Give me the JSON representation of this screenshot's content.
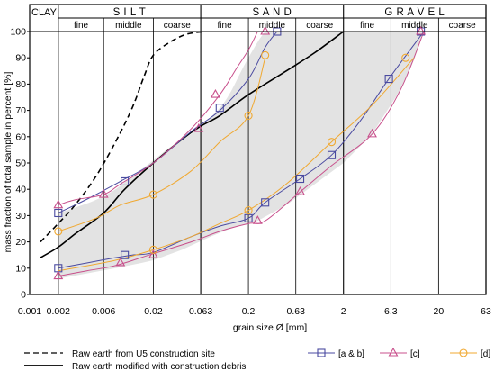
{
  "chart_data": {
    "type": "line",
    "title": "",
    "xlabel": "grain size  Ø [mm]",
    "ylabel": "mass fraction of total sample in percent [%]",
    "xscale": "log",
    "xlim": [
      0.001,
      63
    ],
    "ylim": [
      0,
      100
    ],
    "x_ticks": [
      0.001,
      0.002,
      0.006,
      0.02,
      0.063,
      0.2,
      0.63,
      2,
      6.3,
      20,
      63
    ],
    "x_tick_labels": [
      "0.001",
      "0.002",
      "0.006",
      "0.02",
      "0.063",
      "0.2",
      "0.63",
      "2",
      "6.3",
      "20",
      "63"
    ],
    "y_ticks": [
      0,
      10,
      20,
      30,
      40,
      50,
      60,
      70,
      80,
      90,
      100
    ],
    "grid": "vertical lines at fraction boundaries",
    "legend_position": "bottom",
    "soil_classes": [
      {
        "label": "CLAY"
      },
      {
        "label": "S I L T",
        "subs": [
          "fine",
          "middle",
          "coarse"
        ]
      },
      {
        "label": "S A N D",
        "subs": [
          "fine",
          "middle",
          "coarse"
        ]
      },
      {
        "label": "G R A V E L",
        "subs": [
          "fine",
          "middle",
          "coarse"
        ]
      }
    ],
    "envelope": {
      "upper": [
        [
          0.002,
          31
        ],
        [
          0.003,
          33
        ],
        [
          0.005,
          36
        ],
        [
          0.008,
          40
        ],
        [
          0.012,
          45
        ],
        [
          0.02,
          51
        ],
        [
          0.03,
          56
        ],
        [
          0.05,
          61
        ],
        [
          0.063,
          64
        ],
        [
          0.1,
          71
        ],
        [
          0.13,
          77
        ],
        [
          0.18,
          87
        ],
        [
          0.25,
          96
        ],
        [
          0.3,
          100
        ]
      ],
      "lower": [
        [
          0.002,
          6
        ],
        [
          0.004,
          8
        ],
        [
          0.008,
          10
        ],
        [
          0.015,
          12
        ],
        [
          0.02,
          13
        ],
        [
          0.04,
          17
        ],
        [
          0.08,
          22
        ],
        [
          0.15,
          26
        ],
        [
          0.25,
          28
        ],
        [
          0.5,
          34
        ],
        [
          1,
          42
        ],
        [
          2,
          50
        ],
        [
          4,
          61
        ],
        [
          8,
          78
        ],
        [
          11,
          89
        ],
        [
          14,
          100
        ]
      ]
    },
    "series": [
      {
        "name": "Raw earth from U5 construction site",
        "style": "dashed",
        "color": "#000000",
        "points": [
          [
            0.0013,
            20
          ],
          [
            0.002,
            27
          ],
          [
            0.003,
            34
          ],
          [
            0.005,
            45
          ],
          [
            0.008,
            58
          ],
          [
            0.012,
            71
          ],
          [
            0.016,
            83
          ],
          [
            0.02,
            91
          ],
          [
            0.03,
            96
          ],
          [
            0.045,
            99
          ],
          [
            0.07,
            100
          ]
        ]
      },
      {
        "name": "Raw earth modified with construction debris",
        "style": "solid",
        "color": "#000000",
        "points": [
          [
            0.0013,
            14
          ],
          [
            0.002,
            18
          ],
          [
            0.003,
            23
          ],
          [
            0.006,
            31
          ],
          [
            0.01,
            40
          ],
          [
            0.02,
            50
          ],
          [
            0.04,
            59
          ],
          [
            0.063,
            64
          ],
          [
            0.1,
            68
          ],
          [
            0.2,
            76
          ],
          [
            0.5,
            85
          ],
          [
            1,
            92
          ],
          [
            2,
            100
          ]
        ]
      },
      {
        "name": "[a & b]",
        "style": "solid",
        "color": "#4a4aa0",
        "marker": "square",
        "curves": [
          [
            [
              0.002,
              31
            ],
            [
              0.003,
              34
            ],
            [
              0.005,
              38
            ],
            [
              0.009,
              43
            ],
            [
              0.02,
              50
            ],
            [
              0.05,
              62
            ],
            [
              0.1,
              70
            ],
            [
              0.2,
              82
            ],
            [
              0.3,
              94
            ],
            [
              0.4,
              100
            ]
          ],
          [
            [
              0.002,
              10
            ],
            [
              0.004,
              12
            ],
            [
              0.008,
              14
            ],
            [
              0.012,
              15
            ],
            [
              0.02,
              16
            ],
            [
              0.05,
              22
            ],
            [
              0.1,
              26
            ],
            [
              0.2,
              29
            ],
            [
              0.3,
              35
            ],
            [
              0.7,
              44
            ],
            [
              1.5,
              53
            ],
            [
              3,
              66
            ],
            [
              6,
              82
            ],
            [
              14,
              100
            ]
          ]
        ]
      },
      {
        "name": "[c]",
        "style": "solid",
        "color": "#c8508c",
        "marker": "triangle",
        "curves": [
          [
            [
              0.002,
              34
            ],
            [
              0.003,
              36
            ],
            [
              0.006,
              38
            ],
            [
              0.009,
              42
            ],
            [
              0.02,
              50
            ],
            [
              0.05,
              63
            ],
            [
              0.1,
              76
            ],
            [
              0.15,
              86
            ],
            [
              0.2,
              93
            ],
            [
              0.25,
              100
            ]
          ],
          [
            [
              0.002,
              7
            ],
            [
              0.004,
              9
            ],
            [
              0.008,
              11
            ],
            [
              0.018,
              15
            ],
            [
              0.05,
              20
            ],
            [
              0.1,
              24
            ],
            [
              0.2,
              27
            ],
            [
              0.3,
              28
            ],
            [
              0.7,
              39
            ],
            [
              1.5,
              49
            ],
            [
              4,
              61
            ],
            [
              8,
              78
            ],
            [
              14,
              100
            ]
          ]
        ]
      },
      {
        "name": "[d]",
        "style": "solid",
        "color": "#f0a830",
        "marker": "circle",
        "curves": [
          [
            [
              0.002,
              24
            ],
            [
              0.005,
              29
            ],
            [
              0.009,
              34
            ],
            [
              0.02,
              38
            ],
            [
              0.05,
              47
            ],
            [
              0.1,
              58
            ],
            [
              0.2,
              68
            ],
            [
              0.3,
              90
            ]
          ],
          [
            [
              0.002,
              9
            ],
            [
              0.008,
              13
            ],
            [
              0.02,
              17
            ],
            [
              0.05,
              22
            ],
            [
              0.1,
              27
            ],
            [
              0.2,
              32
            ],
            [
              0.5,
              42
            ],
            [
              1.5,
              58
            ],
            [
              4,
              72
            ],
            [
              11,
              90
            ]
          ]
        ]
      }
    ],
    "markers": {
      "[a & b]": [
        [
          0.002,
          31
        ],
        [
          0.002,
          10
        ],
        [
          0.01,
          43
        ],
        [
          0.01,
          15
        ],
        [
          0.1,
          71
        ],
        [
          0.2,
          29
        ],
        [
          0.3,
          35
        ],
        [
          0.4,
          100
        ],
        [
          0.7,
          44
        ],
        [
          1.5,
          53
        ],
        [
          6,
          82
        ],
        [
          13,
          100
        ]
      ],
      "[c]": [
        [
          0.002,
          34
        ],
        [
          0.002,
          7
        ],
        [
          0.006,
          38
        ],
        [
          0.009,
          12
        ],
        [
          0.02,
          15
        ],
        [
          0.06,
          63
        ],
        [
          0.09,
          76
        ],
        [
          0.25,
          28
        ],
        [
          0.3,
          100
        ],
        [
          0.7,
          39
        ],
        [
          4,
          61
        ],
        [
          13,
          100
        ]
      ],
      "[d]": [
        [
          0.002,
          24
        ],
        [
          0.02,
          38
        ],
        [
          0.02,
          17
        ],
        [
          0.2,
          68
        ],
        [
          0.2,
          32
        ],
        [
          0.3,
          91
        ],
        [
          1.5,
          58
        ],
        [
          9,
          90
        ]
      ]
    }
  }
}
